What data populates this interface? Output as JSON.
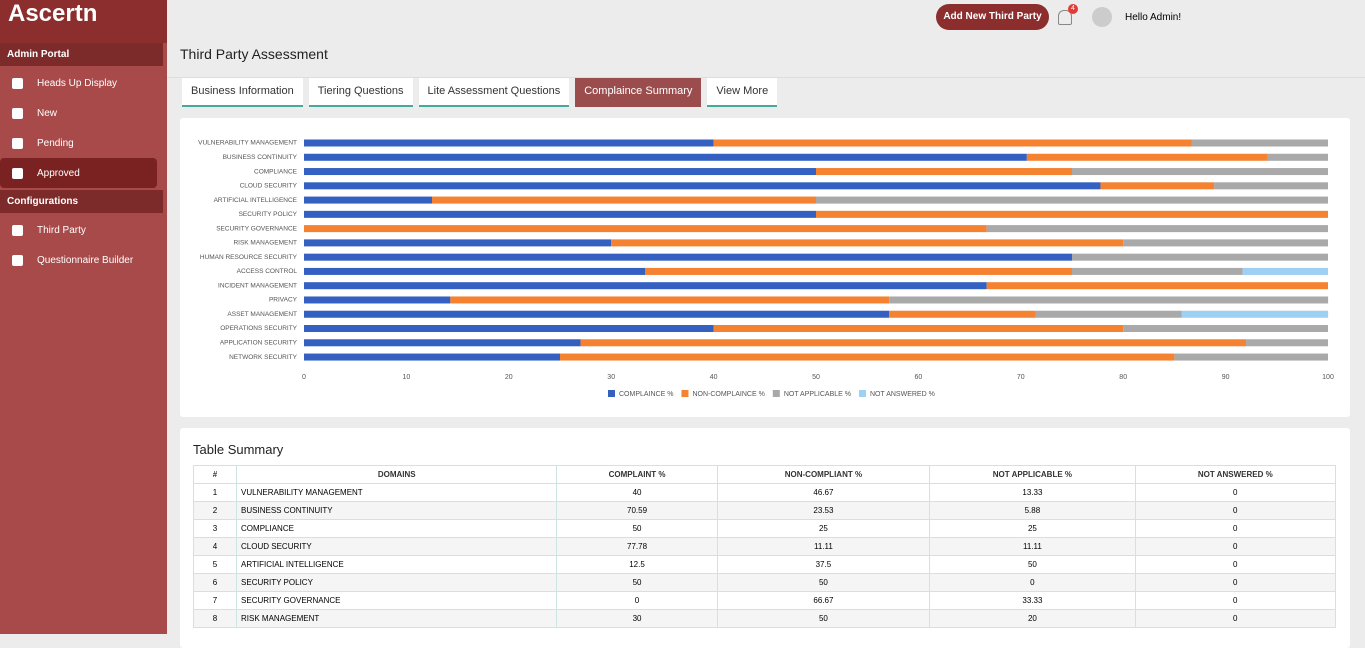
{
  "header": {
    "logo": "Ascertn",
    "button": "Add New Third Party",
    "notification_count": 4,
    "greeting": "Hello Admin!"
  },
  "sidebar": {
    "sections": [
      {
        "title": "Admin Portal",
        "items": [
          "Heads Up Display",
          "New",
          "Pending",
          "Approved"
        ]
      },
      {
        "title": "Configurations",
        "items": [
          "Third Party",
          "Questionnaire Builder"
        ]
      }
    ]
  },
  "page_title": "Third Party Assessment",
  "tabs": [
    "Business Information",
    "Tiering Questions",
    "Lite Assessment Questions",
    "Complaince Summary",
    "View More"
  ],
  "chart_data": {
    "type": "bar",
    "orientation": "horizontal",
    "stacked": true,
    "categories": [
      "VULNERABILITY MANAGEMENT",
      "BUSINESS CONTINUITY",
      "COMPLIANCE",
      "CLOUD SECURITY",
      "ARTIFICIAL INTELLIGENCE",
      "SECURITY POLICY",
      "SECURITY GOVERNANCE",
      "RISK MANAGEMENT",
      "HUMAN RESOURCE SECURITY",
      "ACCESS CONTROL",
      "INCIDENT MANAGEMENT",
      "PRIVACY",
      "ASSET MANAGEMENT",
      "OPERATIONS SECURITY",
      "APPLICATION SECURITY",
      "NETWORK SECURITY"
    ],
    "series": [
      {
        "name": "COMPLAINCE %",
        "color": "#3461c1",
        "values": [
          40,
          70.59,
          50,
          77.78,
          12.5,
          50,
          0,
          30,
          75,
          33.33,
          66.67,
          14.29,
          57.14,
          40,
          27,
          25
        ]
      },
      {
        "name": "NON-COMPLAINCE %",
        "color": "#f58231",
        "values": [
          46.67,
          23.53,
          25,
          11.11,
          37.5,
          50,
          66.67,
          50,
          0,
          41.67,
          33.33,
          42.86,
          14.29,
          40,
          65,
          60
        ]
      },
      {
        "name": "NOT APPLICABLE %",
        "color": "#a9a9a9",
        "values": [
          13.33,
          5.88,
          25,
          11.11,
          50,
          0,
          33.33,
          20,
          25,
          16.67,
          0,
          42.86,
          14.29,
          20,
          8,
          15
        ]
      },
      {
        "name": "NOT ANSWERED %",
        "color": "#9dd0f3",
        "values": [
          0,
          0,
          0,
          0,
          0,
          0,
          0,
          0,
          0,
          8.33,
          0,
          0,
          14.29,
          0,
          0,
          0
        ]
      }
    ],
    "xlim": [
      0,
      100
    ],
    "xticks": [
      0,
      10,
      20,
      30,
      40,
      50,
      60,
      70,
      80,
      90,
      100
    ],
    "legend": "bottom"
  },
  "table": {
    "title": "Table Summary",
    "columns": [
      "#",
      "DOMAINS",
      "COMPLAINT %",
      "NON-COMPLIANT %",
      "NOT APPLICABLE %",
      "NOT ANSWERED %"
    ],
    "rows": [
      [
        "1",
        "VULNERABILITY MANAGEMENT",
        "40",
        "46.67",
        "13.33",
        "0"
      ],
      [
        "2",
        "BUSINESS CONTINUITY",
        "70.59",
        "23.53",
        "5.88",
        "0"
      ],
      [
        "3",
        "COMPLIANCE",
        "50",
        "25",
        "25",
        "0"
      ],
      [
        "4",
        "CLOUD SECURITY",
        "77.78",
        "11.11",
        "11.11",
        "0"
      ],
      [
        "5",
        "ARTIFICIAL INTELLIGENCE",
        "12.5",
        "37.5",
        "50",
        "0"
      ],
      [
        "6",
        "SECURITY POLICY",
        "50",
        "50",
        "0",
        "0"
      ],
      [
        "7",
        "SECURITY GOVERNANCE",
        "0",
        "66.67",
        "33.33",
        "0"
      ],
      [
        "8",
        "RISK MANAGEMENT",
        "30",
        "50",
        "20",
        "0"
      ]
    ]
  }
}
